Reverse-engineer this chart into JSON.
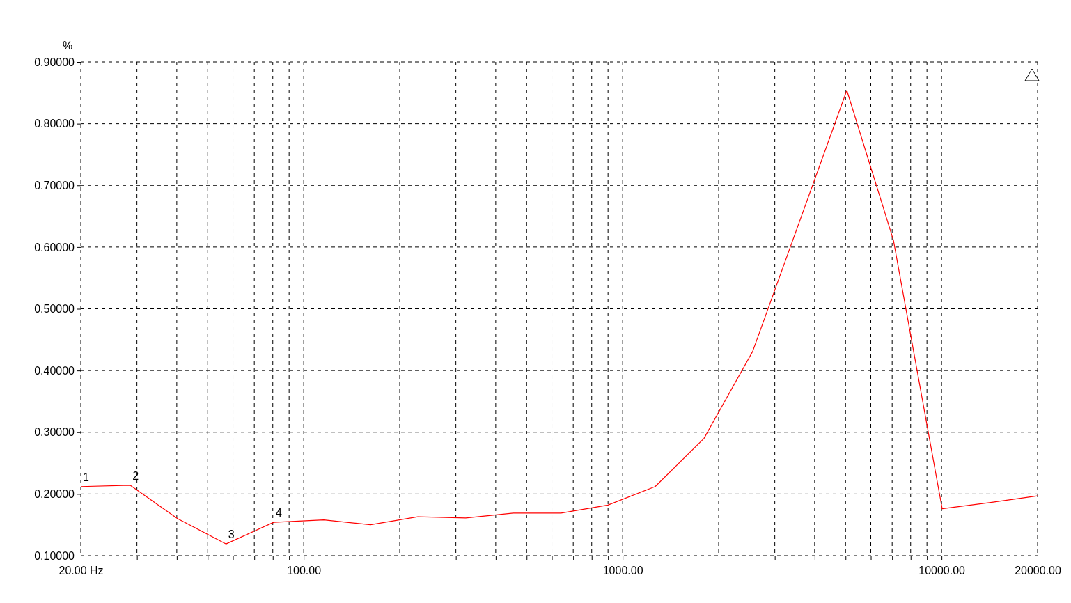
{
  "chart_data": {
    "type": "line",
    "ylabel": "%",
    "log": "x",
    "grid": true,
    "line_style": "solid",
    "marker": "none",
    "xlim": [
      20,
      20000
    ],
    "ylim": [
      0.1,
      0.9
    ],
    "xticks": [
      {
        "value": 20,
        "label": "20.00 Hz"
      },
      {
        "value": 30,
        "label": null
      },
      {
        "value": 40,
        "label": null
      },
      {
        "value": 50,
        "label": null
      },
      {
        "value": 60,
        "label": null
      },
      {
        "value": 70,
        "label": null
      },
      {
        "value": 80,
        "label": null
      },
      {
        "value": 90,
        "label": null
      },
      {
        "value": 100,
        "label": "100.00"
      },
      {
        "value": 200,
        "label": null
      },
      {
        "value": 300,
        "label": null
      },
      {
        "value": 400,
        "label": null
      },
      {
        "value": 500,
        "label": null
      },
      {
        "value": 600,
        "label": null
      },
      {
        "value": 700,
        "label": null
      },
      {
        "value": 800,
        "label": null
      },
      {
        "value": 900,
        "label": null
      },
      {
        "value": 1000,
        "label": "1000.00"
      },
      {
        "value": 2000,
        "label": null
      },
      {
        "value": 3000,
        "label": null
      },
      {
        "value": 4000,
        "label": null
      },
      {
        "value": 5000,
        "label": null
      },
      {
        "value": 6000,
        "label": null
      },
      {
        "value": 7000,
        "label": null
      },
      {
        "value": 8000,
        "label": null
      },
      {
        "value": 9000,
        "label": null
      },
      {
        "value": 10000,
        "label": "10000.00"
      },
      {
        "value": 20000,
        "label": "20000.00"
      }
    ],
    "yticks": [
      {
        "value": 0.1,
        "label": "0.10000"
      },
      {
        "value": 0.2,
        "label": "0.20000"
      },
      {
        "value": 0.3,
        "label": "0.30000"
      },
      {
        "value": 0.4,
        "label": "0.40000"
      },
      {
        "value": 0.5,
        "label": "0.50000"
      },
      {
        "value": 0.6,
        "label": "0.60000"
      },
      {
        "value": 0.7,
        "label": "0.70000"
      },
      {
        "value": 0.8,
        "label": "0.80000"
      },
      {
        "value": 0.9,
        "label": "0.90000"
      }
    ],
    "series": [
      {
        "color": "#ff0000",
        "x": [
          20,
          28.6,
          40.2,
          57.1,
          80.5,
          115.6,
          162,
          228,
          322,
          454,
          641,
          899,
          1265,
          1799,
          2557,
          5046,
          7066,
          10046,
          14125,
          20000
        ],
        "values": [
          0.212,
          0.214,
          0.16,
          0.119,
          0.154,
          0.158,
          0.15,
          0.163,
          0.161,
          0.169,
          0.169,
          0.182,
          0.212,
          0.29,
          0.431,
          0.854,
          0.611,
          0.176,
          0.186,
          0.197
        ]
      }
    ],
    "annotations": [
      {
        "text": "1",
        "x": 20,
        "y": 0.212
      },
      {
        "text": "2",
        "x": 28.6,
        "y": 0.214
      },
      {
        "text": "3",
        "x": 57.1,
        "y": 0.119
      },
      {
        "text": "4",
        "x": 80.5,
        "y": 0.154
      }
    ]
  }
}
